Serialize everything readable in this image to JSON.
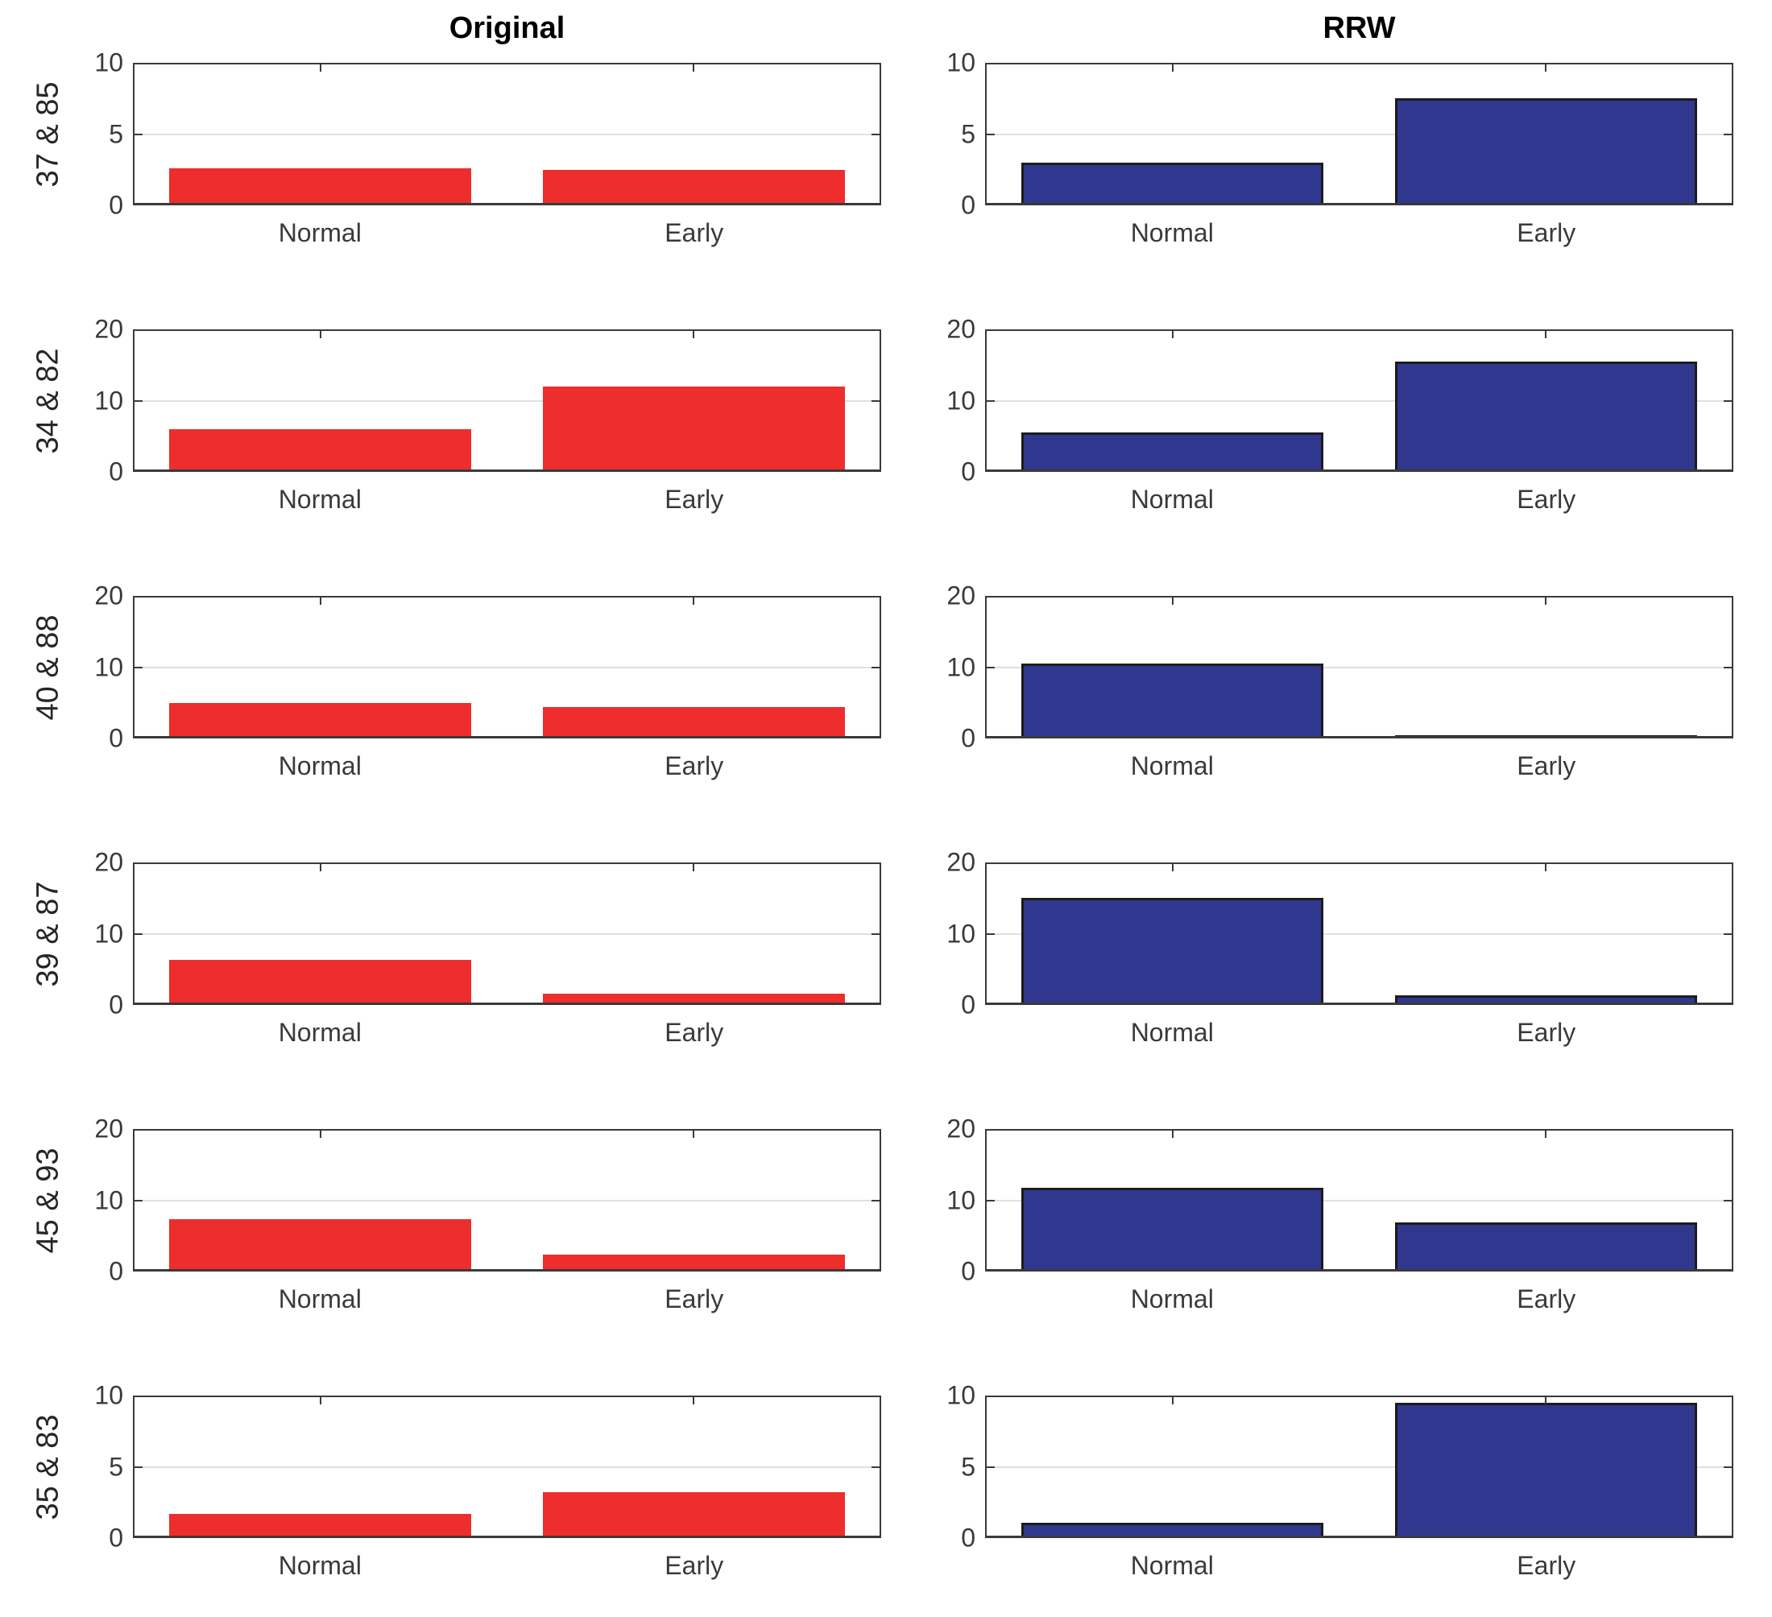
{
  "style": {
    "background": "#FFFFFF",
    "original_bar_color": "#EE2D2D",
    "rrw_bar_color": "#2F378F",
    "rrw_bar_edge_color": "#1C1C1C",
    "axis_color": "#3A3A3A",
    "grid_color": "#E0E0E0",
    "tick_text_color": "#3A3A3A",
    "title_color": "#000000"
  },
  "chart_data": [
    {
      "type": "bar",
      "row": 0,
      "col": 0,
      "title": "Original",
      "row_label": "37 & 85",
      "categories": [
        "Normal",
        "Early"
      ],
      "values": [
        2.6,
        2.5
      ],
      "ylim": [
        0,
        10
      ],
      "yticks": [
        0,
        5,
        10
      ],
      "grid": "horizontal-mid",
      "bar_color": "#EE2D2D",
      "bar_edge_color": null
    },
    {
      "type": "bar",
      "row": 0,
      "col": 1,
      "title": "RRW",
      "row_label": "",
      "categories": [
        "Normal",
        "Early"
      ],
      "values": [
        3.0,
        7.5
      ],
      "ylim": [
        0,
        10
      ],
      "yticks": [
        0,
        5,
        10
      ],
      "grid": "horizontal-mid",
      "bar_color": "#2F378F",
      "bar_edge_color": "#1C1C1C"
    },
    {
      "type": "bar",
      "row": 1,
      "col": 0,
      "title": "",
      "row_label": "34 & 82",
      "categories": [
        "Normal",
        "Early"
      ],
      "values": [
        6.0,
        12.0
      ],
      "ylim": [
        0,
        20
      ],
      "yticks": [
        0,
        10,
        20
      ],
      "grid": "horizontal-mid",
      "bar_color": "#EE2D2D",
      "bar_edge_color": null
    },
    {
      "type": "bar",
      "row": 1,
      "col": 1,
      "title": "",
      "row_label": "",
      "categories": [
        "Normal",
        "Early"
      ],
      "values": [
        5.5,
        15.5
      ],
      "ylim": [
        0,
        20
      ],
      "yticks": [
        0,
        10,
        20
      ],
      "grid": "horizontal-mid",
      "bar_color": "#2F378F",
      "bar_edge_color": "#1C1C1C"
    },
    {
      "type": "bar",
      "row": 2,
      "col": 0,
      "title": "",
      "row_label": "40 & 88",
      "categories": [
        "Normal",
        "Early"
      ],
      "values": [
        5.0,
        4.4
      ],
      "ylim": [
        0,
        20
      ],
      "yticks": [
        0,
        10,
        20
      ],
      "grid": "horizontal-mid",
      "bar_color": "#EE2D2D",
      "bar_edge_color": null
    },
    {
      "type": "bar",
      "row": 2,
      "col": 1,
      "title": "",
      "row_label": "",
      "categories": [
        "Normal",
        "Early"
      ],
      "values": [
        10.5,
        0.5
      ],
      "ylim": [
        0,
        20
      ],
      "yticks": [
        0,
        10,
        20
      ],
      "grid": "horizontal-mid",
      "bar_color": "#2F378F",
      "bar_edge_color": "#1C1C1C"
    },
    {
      "type": "bar",
      "row": 3,
      "col": 0,
      "title": "",
      "row_label": "39 & 87",
      "categories": [
        "Normal",
        "Early"
      ],
      "values": [
        6.3,
        1.6
      ],
      "ylim": [
        0,
        20
      ],
      "yticks": [
        0,
        10,
        20
      ],
      "grid": "horizontal-mid",
      "bar_color": "#EE2D2D",
      "bar_edge_color": null
    },
    {
      "type": "bar",
      "row": 3,
      "col": 1,
      "title": "",
      "row_label": "",
      "categories": [
        "Normal",
        "Early"
      ],
      "values": [
        15.0,
        1.4
      ],
      "ylim": [
        0,
        20
      ],
      "yticks": [
        0,
        10,
        20
      ],
      "grid": "horizontal-mid",
      "bar_color": "#2F378F",
      "bar_edge_color": "#1C1C1C"
    },
    {
      "type": "bar",
      "row": 4,
      "col": 0,
      "title": "",
      "row_label": "45 & 93",
      "categories": [
        "Normal",
        "Early"
      ],
      "values": [
        7.4,
        2.4
      ],
      "ylim": [
        0,
        20
      ],
      "yticks": [
        0,
        10,
        20
      ],
      "grid": "horizontal-mid",
      "bar_color": "#EE2D2D",
      "bar_edge_color": null
    },
    {
      "type": "bar",
      "row": 4,
      "col": 1,
      "title": "",
      "row_label": "",
      "categories": [
        "Normal",
        "Early"
      ],
      "values": [
        11.7,
        6.9
      ],
      "ylim": [
        0,
        20
      ],
      "yticks": [
        0,
        10,
        20
      ],
      "grid": "horizontal-mid",
      "bar_color": "#2F378F",
      "bar_edge_color": "#1C1C1C"
    },
    {
      "type": "bar",
      "row": 5,
      "col": 0,
      "title": "",
      "row_label": "35 & 83",
      "categories": [
        "Normal",
        "Early"
      ],
      "values": [
        1.7,
        3.2
      ],
      "ylim": [
        0,
        10
      ],
      "yticks": [
        0,
        5,
        10
      ],
      "grid": "horizontal-mid",
      "bar_color": "#EE2D2D",
      "bar_edge_color": null
    },
    {
      "type": "bar",
      "row": 5,
      "col": 1,
      "title": "",
      "row_label": "",
      "categories": [
        "Normal",
        "Early"
      ],
      "values": [
        1.1,
        9.5
      ],
      "ylim": [
        0,
        10
      ],
      "yticks": [
        0,
        5,
        10
      ],
      "grid": "horizontal-mid",
      "bar_color": "#2F378F",
      "bar_edge_color": "#1C1C1C"
    }
  ]
}
